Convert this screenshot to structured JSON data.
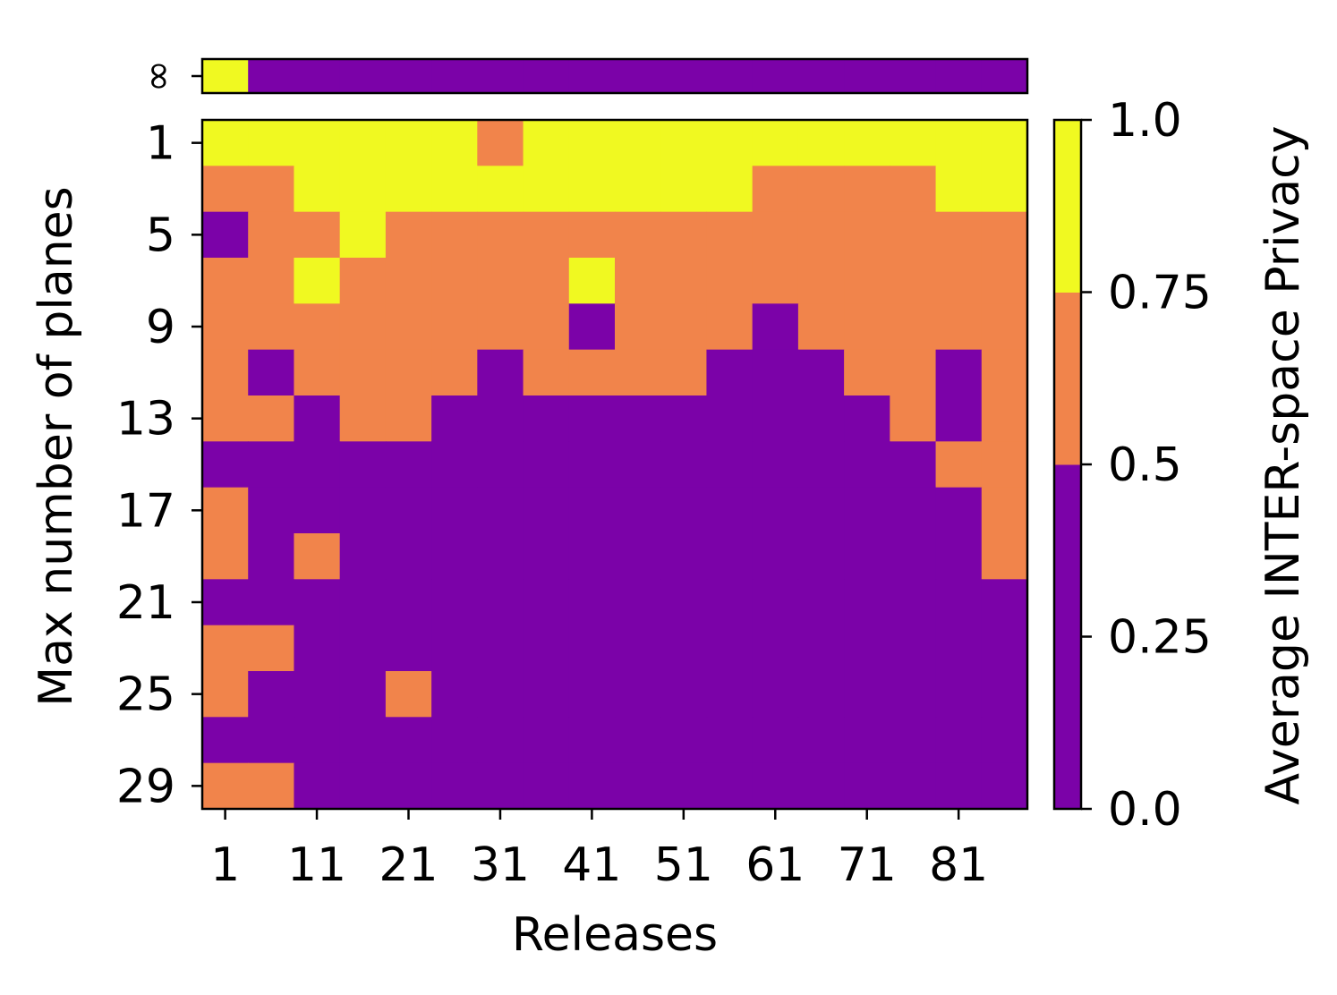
{
  "chart_data": {
    "type": "heatmap",
    "xlabel": "Releases",
    "ylabel": "Max number of planes",
    "colorbar_label": "Average INTER-space Privacy",
    "colorbar_ticks": [
      "0.0",
      "0.25",
      "0.5",
      "0.75",
      "1.0"
    ],
    "colorbar_tick_values": [
      0.0,
      0.25,
      0.5,
      0.75,
      1.0
    ],
    "colorbar_bins": [
      {
        "min": 0.0,
        "max": 0.5,
        "color": "#7b02a8"
      },
      {
        "min": 0.5,
        "max": 0.75,
        "color": "#f1844b"
      },
      {
        "min": 0.75,
        "max": 1.0,
        "color": "#f0f921"
      }
    ],
    "x_tick_labels": [
      "1",
      "11",
      "21",
      "31",
      "41",
      "51",
      "61",
      "71",
      "81"
    ],
    "x_tick_columns": [
      0,
      2,
      4,
      6,
      8,
      10,
      12,
      14,
      16
    ],
    "y_tick_labels": [
      "1",
      "5",
      "9",
      "13",
      "17",
      "21",
      "25",
      "29"
    ],
    "y_tick_rows": [
      0,
      2,
      4,
      6,
      8,
      10,
      12,
      14
    ],
    "infinity_row": {
      "label": "∞",
      "levels": [
        2,
        0,
        0,
        0,
        0,
        0,
        0,
        0,
        0,
        0,
        0,
        0,
        0,
        0,
        0,
        0,
        0,
        0
      ]
    },
    "level_legend": {
      "0": "< 0.5",
      "1": "0.5 – 0.75",
      "2": "> 0.75"
    },
    "grid": [
      [
        2,
        2,
        2,
        2,
        2,
        2,
        1,
        2,
        2,
        2,
        2,
        2,
        2,
        2,
        2,
        2,
        2,
        2
      ],
      [
        1,
        1,
        2,
        2,
        2,
        2,
        2,
        2,
        2,
        2,
        2,
        2,
        1,
        1,
        1,
        1,
        2,
        2
      ],
      [
        0,
        1,
        1,
        2,
        1,
        1,
        1,
        1,
        1,
        1,
        1,
        1,
        1,
        1,
        1,
        1,
        1,
        1
      ],
      [
        1,
        1,
        2,
        1,
        1,
        1,
        1,
        1,
        2,
        1,
        1,
        1,
        1,
        1,
        1,
        1,
        1,
        1
      ],
      [
        1,
        1,
        1,
        1,
        1,
        1,
        1,
        1,
        0,
        1,
        1,
        1,
        0,
        1,
        1,
        1,
        1,
        1
      ],
      [
        1,
        0,
        1,
        1,
        1,
        1,
        0,
        1,
        1,
        1,
        1,
        0,
        0,
        0,
        1,
        1,
        0,
        1
      ],
      [
        1,
        1,
        0,
        1,
        1,
        0,
        0,
        0,
        0,
        0,
        0,
        0,
        0,
        0,
        0,
        1,
        0,
        1
      ],
      [
        0,
        0,
        0,
        0,
        0,
        0,
        0,
        0,
        0,
        0,
        0,
        0,
        0,
        0,
        0,
        0,
        1,
        1
      ],
      [
        1,
        0,
        0,
        0,
        0,
        0,
        0,
        0,
        0,
        0,
        0,
        0,
        0,
        0,
        0,
        0,
        0,
        1
      ],
      [
        1,
        0,
        1,
        0,
        0,
        0,
        0,
        0,
        0,
        0,
        0,
        0,
        0,
        0,
        0,
        0,
        0,
        1
      ],
      [
        0,
        0,
        0,
        0,
        0,
        0,
        0,
        0,
        0,
        0,
        0,
        0,
        0,
        0,
        0,
        0,
        0,
        0
      ],
      [
        1,
        1,
        0,
        0,
        0,
        0,
        0,
        0,
        0,
        0,
        0,
        0,
        0,
        0,
        0,
        0,
        0,
        0
      ],
      [
        1,
        0,
        0,
        0,
        1,
        0,
        0,
        0,
        0,
        0,
        0,
        0,
        0,
        0,
        0,
        0,
        0,
        0
      ],
      [
        0,
        0,
        0,
        0,
        0,
        0,
        0,
        0,
        0,
        0,
        0,
        0,
        0,
        0,
        0,
        0,
        0,
        0
      ],
      [
        1,
        1,
        0,
        0,
        0,
        0,
        0,
        0,
        0,
        0,
        0,
        0,
        0,
        0,
        0,
        0,
        0,
        0
      ]
    ]
  }
}
